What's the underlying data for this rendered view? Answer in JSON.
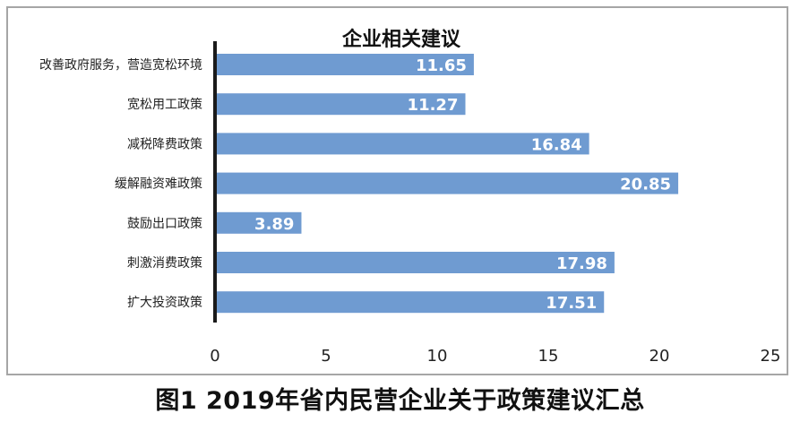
{
  "caption": "图1  2019年省内民营企业关于政策建议汇总",
  "colors": {
    "bar": "#6f9bd1",
    "axis": "#1a1a1a",
    "frame": "#a6a6a6",
    "value_text": "#ffffff"
  },
  "chart_data": {
    "type": "bar",
    "orientation": "horizontal",
    "title": "企业相关建议",
    "categories": [
      "改善政府服务，营造宽松环境",
      "宽松用工政策",
      "减税降费政策",
      "缓解融资难政策",
      "鼓励出口政策",
      "刺激消费政策",
      "扩大投资政策"
    ],
    "values": [
      11.65,
      11.27,
      16.84,
      20.85,
      3.89,
      17.98,
      17.51
    ],
    "xlim": [
      0,
      25
    ],
    "xticks": [
      0,
      5,
      10,
      15,
      20,
      25
    ],
    "grid": false,
    "legend": "none",
    "data_labels": true
  }
}
